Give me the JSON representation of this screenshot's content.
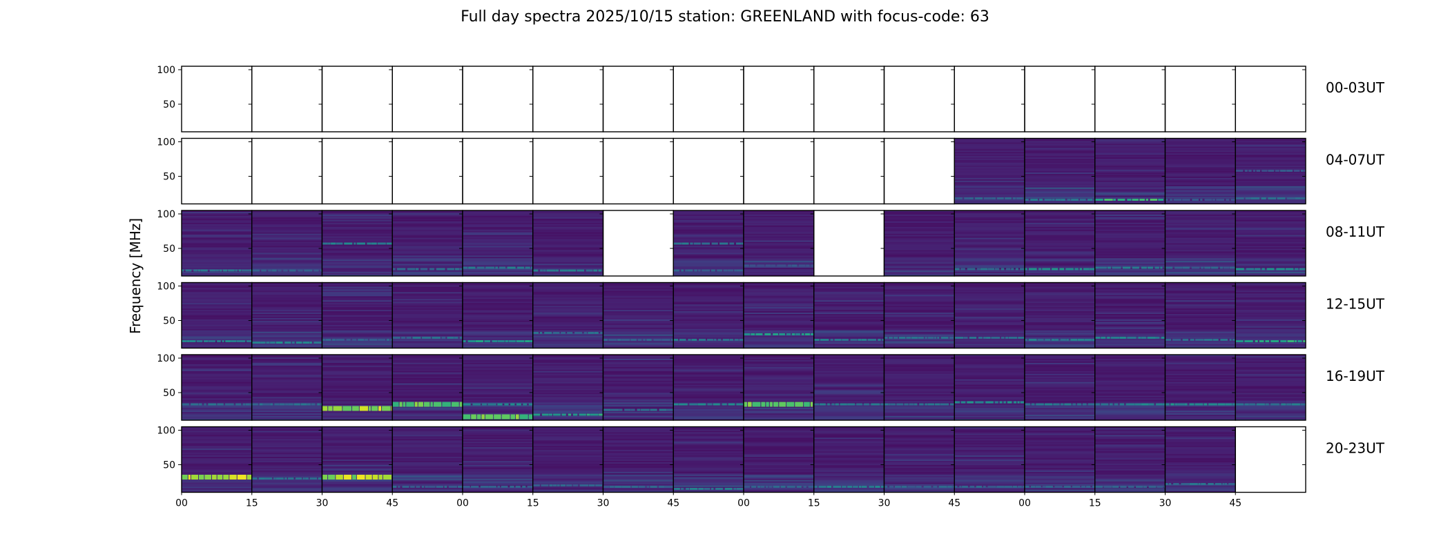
{
  "title": "Full day spectra 2025/10/15 station: GREENLAND with focus-code: 63",
  "chart_data": {
    "type": "heatmap",
    "title": "Full day spectra 2025/10/15 station: GREENLAND with focus-code: 63",
    "xlabel": "",
    "ylabel": "Frequency [MHz]",
    "colormap": "viridis",
    "ylim": [
      10,
      105
    ],
    "yticks": [
      50,
      100
    ],
    "xtick_labels": [
      "00",
      "15",
      "30",
      "45",
      "00",
      "15",
      "30",
      "45",
      "00",
      "15",
      "30",
      "45",
      "00",
      "15",
      "30",
      "45"
    ],
    "panels_per_row": 16,
    "panel_minutes": 15,
    "rows": [
      {
        "label": "00-03UT",
        "present": [
          0,
          0,
          0,
          0,
          0,
          0,
          0,
          0,
          0,
          0,
          0,
          0,
          0,
          0,
          0,
          0
        ],
        "bands": []
      },
      {
        "label": "04-07UT",
        "present": [
          0,
          0,
          0,
          0,
          0,
          0,
          0,
          0,
          0,
          0,
          0,
          1,
          1,
          1,
          1,
          1
        ],
        "bands": [
          {
            "panel": 11,
            "freq": 18,
            "level": 0.35
          },
          {
            "panel": 12,
            "freq": 16,
            "level": 0.45
          },
          {
            "panel": 13,
            "freq": 16,
            "level": 0.75
          },
          {
            "panel": 14,
            "freq": 16,
            "level": 0.3
          },
          {
            "panel": 15,
            "freq": 18,
            "level": 0.4
          },
          {
            "panel": 15,
            "freq": 58,
            "level": 0.3
          }
        ]
      },
      {
        "label": "08-11UT",
        "present": [
          1,
          1,
          1,
          1,
          1,
          1,
          0,
          1,
          1,
          0,
          1,
          1,
          1,
          1,
          1,
          1
        ],
        "bands": [
          {
            "panel": 0,
            "freq": 18,
            "level": 0.45
          },
          {
            "panel": 1,
            "freq": 18,
            "level": 0.35
          },
          {
            "panel": 2,
            "freq": 57,
            "level": 0.5
          },
          {
            "panel": 3,
            "freq": 20,
            "level": 0.4
          },
          {
            "panel": 4,
            "freq": 22,
            "level": 0.45
          },
          {
            "panel": 5,
            "freq": 18,
            "level": 0.45
          },
          {
            "panel": 7,
            "freq": 57,
            "level": 0.45
          },
          {
            "panel": 7,
            "freq": 18,
            "level": 0.35
          },
          {
            "panel": 8,
            "freq": 25,
            "level": 0.3
          },
          {
            "panel": 11,
            "freq": 20,
            "level": 0.4
          },
          {
            "panel": 12,
            "freq": 20,
            "level": 0.55
          },
          {
            "panel": 13,
            "freq": 22,
            "level": 0.45
          },
          {
            "panel": 14,
            "freq": 22,
            "level": 0.35
          },
          {
            "panel": 15,
            "freq": 20,
            "level": 0.55
          }
        ]
      },
      {
        "label": "12-15UT",
        "present": [
          1,
          1,
          1,
          1,
          1,
          1,
          1,
          1,
          1,
          1,
          1,
          1,
          1,
          1,
          1,
          1
        ],
        "bands": [
          {
            "panel": 0,
            "freq": 20,
            "level": 0.5
          },
          {
            "panel": 1,
            "freq": 18,
            "level": 0.5
          },
          {
            "panel": 2,
            "freq": 22,
            "level": 0.35
          },
          {
            "panel": 3,
            "freq": 25,
            "level": 0.4
          },
          {
            "panel": 4,
            "freq": 20,
            "level": 0.6
          },
          {
            "panel": 5,
            "freq": 32,
            "level": 0.4
          },
          {
            "panel": 6,
            "freq": 22,
            "level": 0.35
          },
          {
            "panel": 7,
            "freq": 22,
            "level": 0.45
          },
          {
            "panel": 8,
            "freq": 30,
            "level": 0.6
          },
          {
            "panel": 9,
            "freq": 22,
            "level": 0.45
          },
          {
            "panel": 10,
            "freq": 25,
            "level": 0.4
          },
          {
            "panel": 11,
            "freq": 25,
            "level": 0.4
          },
          {
            "panel": 12,
            "freq": 22,
            "level": 0.45
          },
          {
            "panel": 13,
            "freq": 25,
            "level": 0.5
          },
          {
            "panel": 14,
            "freq": 22,
            "level": 0.4
          },
          {
            "panel": 15,
            "freq": 20,
            "level": 0.7
          }
        ]
      },
      {
        "label": "16-19UT",
        "present": [
          1,
          1,
          1,
          1,
          1,
          1,
          1,
          1,
          1,
          1,
          1,
          1,
          1,
          1,
          1,
          1
        ],
        "bands": [
          {
            "panel": 0,
            "freq": 33,
            "level": 0.4
          },
          {
            "panel": 1,
            "freq": 33,
            "level": 0.4
          },
          {
            "panel": 2,
            "freq": 27,
            "level": 0.98
          },
          {
            "panel": 3,
            "freq": 33,
            "level": 0.85
          },
          {
            "panel": 4,
            "freq": 15,
            "level": 0.85
          },
          {
            "panel": 4,
            "freq": 33,
            "level": 0.5
          },
          {
            "panel": 5,
            "freq": 18,
            "level": 0.65
          },
          {
            "panel": 6,
            "freq": 25,
            "level": 0.4
          },
          {
            "panel": 7,
            "freq": 33,
            "level": 0.5
          },
          {
            "panel": 8,
            "freq": 33,
            "level": 0.9
          },
          {
            "panel": 9,
            "freq": 33,
            "level": 0.45
          },
          {
            "panel": 10,
            "freq": 33,
            "level": 0.45
          },
          {
            "panel": 11,
            "freq": 36,
            "level": 0.55
          },
          {
            "panel": 12,
            "freq": 33,
            "level": 0.45
          },
          {
            "panel": 13,
            "freq": 33,
            "level": 0.5
          },
          {
            "panel": 14,
            "freq": 33,
            "level": 0.55
          },
          {
            "panel": 15,
            "freq": 33,
            "level": 0.45
          }
        ]
      },
      {
        "label": "20-23UT",
        "present": [
          1,
          1,
          1,
          1,
          1,
          1,
          1,
          1,
          1,
          1,
          1,
          1,
          1,
          1,
          1,
          0
        ],
        "bands": [
          {
            "panel": 0,
            "freq": 32,
            "level": 0.98
          },
          {
            "panel": 1,
            "freq": 30,
            "level": 0.4
          },
          {
            "panel": 2,
            "freq": 32,
            "level": 0.98
          },
          {
            "panel": 3,
            "freq": 18,
            "level": 0.35
          },
          {
            "panel": 4,
            "freq": 18,
            "level": 0.35
          },
          {
            "panel": 5,
            "freq": 20,
            "level": 0.35
          },
          {
            "panel": 6,
            "freq": 18,
            "level": 0.35
          },
          {
            "panel": 7,
            "freq": 15,
            "level": 0.45
          },
          {
            "panel": 8,
            "freq": 18,
            "level": 0.35
          },
          {
            "panel": 9,
            "freq": 18,
            "level": 0.5
          },
          {
            "panel": 10,
            "freq": 18,
            "level": 0.35
          },
          {
            "panel": 11,
            "freq": 18,
            "level": 0.35
          },
          {
            "panel": 12,
            "freq": 18,
            "level": 0.35
          },
          {
            "panel": 13,
            "freq": 18,
            "level": 0.35
          },
          {
            "panel": 14,
            "freq": 22,
            "level": 0.4
          }
        ]
      }
    ]
  }
}
